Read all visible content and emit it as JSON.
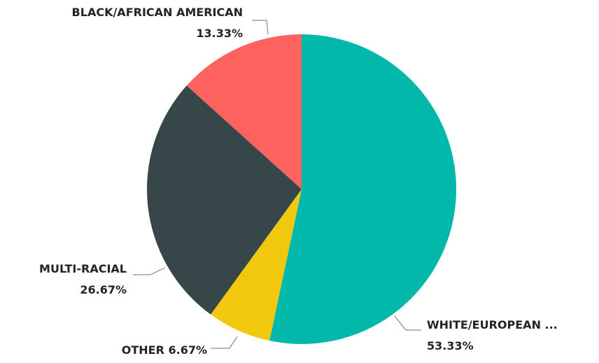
{
  "chart_data": {
    "type": "pie",
    "title": "",
    "legend": "none",
    "slices": [
      {
        "name": "WHITE/EUROPEAN ...",
        "value": 53.33,
        "value_label": "53.33%",
        "color": "#01B8AA"
      },
      {
        "name": "OTHER",
        "value": 6.67,
        "value_label": "6.67%",
        "color": "#F2C80F"
      },
      {
        "name": "MULTI-RACIAL",
        "value": 26.67,
        "value_label": "26.67%",
        "color": "#374649"
      },
      {
        "name": "BLACK/AFRICAN AMERICAN",
        "value": 13.33,
        "value_label": "13.33%",
        "color": "#FD625E"
      }
    ]
  }
}
